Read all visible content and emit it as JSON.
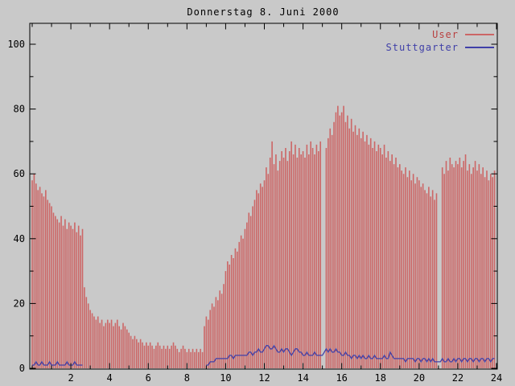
{
  "title": "Donnerstag 8. Juni 2000",
  "legend": {
    "user_label": "User",
    "stuttgarter_label": "Stuttgarter"
  },
  "colors": {
    "background": "#c9c9c9",
    "border": "#000000",
    "user": "#cc6666",
    "user_text": "#b84040",
    "stuttgarter": "#4040a8",
    "stuttgarter_text": "#4040a8"
  },
  "chart_data": {
    "type": "bar",
    "title": "Donnerstag 8. Juni 2000",
    "xlabel": "",
    "ylabel": "",
    "xlim": [
      0,
      24
    ],
    "ylim": [
      0,
      100
    ],
    "xticks": [
      2,
      4,
      6,
      8,
      10,
      12,
      14,
      16,
      18,
      20,
      22,
      24
    ],
    "yticks": [
      0,
      20,
      40,
      60,
      80,
      100
    ],
    "grid": false,
    "legend_position": "top-right",
    "x_start": 0,
    "x_step": 0.1,
    "series": [
      {
        "name": "User",
        "style": "impulses",
        "color": "#cc6666",
        "values": [
          58,
          60,
          57,
          55,
          56,
          54,
          53,
          55,
          52,
          51,
          50,
          48,
          47,
          46,
          45,
          47,
          44,
          46,
          43,
          45,
          44,
          43,
          45,
          42,
          44,
          41,
          43,
          25,
          22,
          20,
          18,
          17,
          16,
          15,
          16,
          14,
          15,
          13,
          14,
          15,
          14,
          15,
          13,
          14,
          15,
          13,
          12,
          14,
          13,
          12,
          11,
          10,
          9,
          10,
          9,
          8,
          9,
          8,
          7,
          8,
          7,
          8,
          7,
          6,
          7,
          8,
          7,
          6,
          7,
          6,
          7,
          6,
          7,
          8,
          7,
          6,
          5,
          6,
          7,
          6,
          5,
          6,
          5,
          6,
          5,
          6,
          5,
          6,
          5,
          13,
          16,
          15,
          18,
          20,
          19,
          22,
          21,
          24,
          23,
          26,
          30,
          33,
          32,
          35,
          34,
          37,
          36,
          39,
          41,
          40,
          43,
          45,
          48,
          47,
          50,
          52,
          55,
          54,
          57,
          56,
          58,
          62,
          60,
          65,
          70,
          63,
          66,
          61,
          64,
          67,
          65,
          68,
          64,
          67,
          70,
          66,
          69,
          65,
          68,
          66,
          67,
          65,
          69,
          66,
          70,
          68,
          66,
          69,
          67,
          70,
          null,
          null,
          68,
          71,
          74,
          72,
          76,
          79,
          81,
          78,
          79,
          81,
          76,
          78,
          74,
          77,
          73,
          75,
          72,
          74,
          71,
          73,
          70,
          72,
          69,
          71,
          68,
          70,
          67,
          69,
          68,
          66,
          69,
          65,
          67,
          64,
          66,
          63,
          65,
          62,
          63,
          61,
          60,
          62,
          59,
          61,
          58,
          60,
          57,
          59,
          58,
          56,
          57,
          55,
          54,
          56,
          53,
          55,
          52,
          54,
          null,
          null,
          62,
          60,
          64,
          61,
          65,
          63,
          62,
          64,
          63,
          65,
          62,
          64,
          66,
          61,
          63,
          60,
          62,
          64,
          61,
          63,
          60,
          62,
          59,
          61,
          58,
          60,
          59,
          61
        ]
      },
      {
        "name": "Stuttgarter",
        "style": "line",
        "color": "#4040a8",
        "values": [
          1,
          1,
          2,
          1,
          1,
          2,
          1,
          1,
          1,
          2,
          1,
          1,
          1,
          2,
          1,
          1,
          1,
          1,
          2,
          1,
          1,
          1,
          2,
          1,
          1,
          1,
          1,
          null,
          null,
          null,
          null,
          null,
          null,
          null,
          null,
          null,
          null,
          null,
          null,
          null,
          null,
          null,
          null,
          null,
          null,
          null,
          null,
          null,
          null,
          null,
          null,
          null,
          null,
          null,
          null,
          null,
          null,
          null,
          null,
          null,
          null,
          null,
          null,
          null,
          null,
          null,
          null,
          null,
          null,
          null,
          null,
          null,
          null,
          null,
          null,
          null,
          null,
          null,
          null,
          null,
          null,
          null,
          null,
          null,
          null,
          null,
          null,
          null,
          null,
          null,
          1,
          1,
          2,
          2,
          2,
          3,
          3,
          3,
          3,
          3,
          3,
          3,
          4,
          4,
          3,
          4,
          4,
          4,
          4,
          4,
          4,
          4,
          5,
          5,
          4,
          5,
          5,
          6,
          5,
          5,
          6,
          7,
          7,
          6,
          6,
          7,
          6,
          5,
          5,
          6,
          5,
          6,
          6,
          5,
          4,
          5,
          6,
          6,
          5,
          5,
          4,
          4,
          5,
          4,
          4,
          4,
          5,
          4,
          4,
          4,
          4,
          5,
          6,
          5,
          6,
          5,
          5,
          6,
          5,
          5,
          4,
          4,
          5,
          4,
          4,
          3,
          4,
          4,
          3,
          4,
          3,
          4,
          3,
          3,
          4,
          3,
          3,
          4,
          3,
          3,
          3,
          3,
          4,
          3,
          3,
          5,
          4,
          3,
          3,
          3,
          3,
          3,
          3,
          2,
          3,
          3,
          3,
          3,
          2,
          3,
          3,
          2,
          3,
          3,
          2,
          3,
          2,
          3,
          2,
          2,
          2,
          2,
          3,
          2,
          2,
          3,
          2,
          2,
          3,
          2,
          3,
          3,
          2,
          3,
          3,
          2,
          3,
          3,
          2,
          3,
          3,
          2,
          3,
          3,
          2,
          3,
          3,
          2,
          3,
          3
        ]
      }
    ]
  }
}
